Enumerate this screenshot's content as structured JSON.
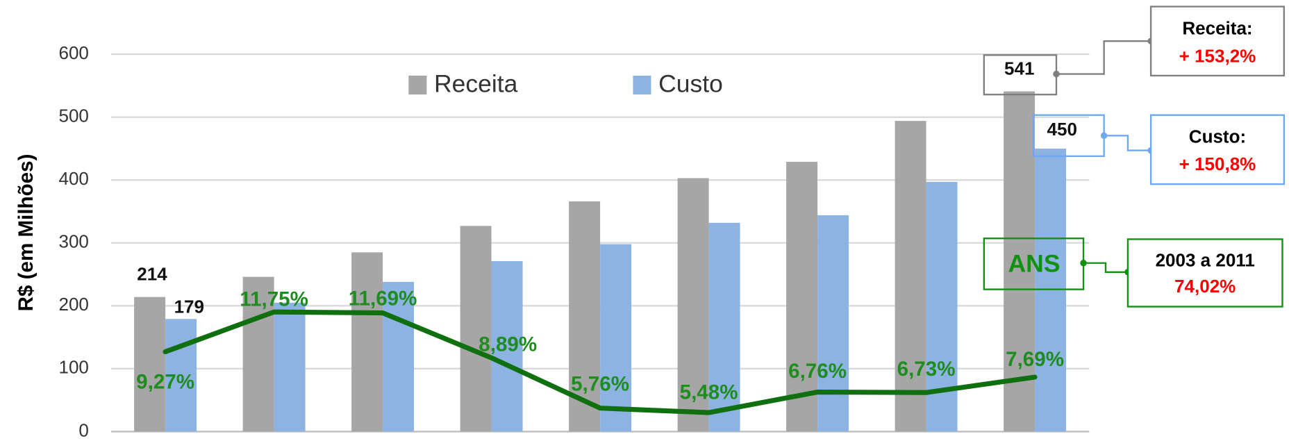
{
  "chart_data": {
    "type": "bar",
    "y_axis_label": "R$ (em Milhões)",
    "categories": [
      null,
      null,
      null,
      null,
      null,
      null,
      null,
      null,
      null
    ],
    "series": [
      {
        "name": "Receita",
        "color": "#a6a6a6",
        "values": [
          214,
          246,
          285,
          327,
          366,
          403,
          429,
          494,
          541
        ],
        "value_labels": [
          "214",
          null,
          null,
          null,
          null,
          null,
          null,
          null,
          "541"
        ]
      },
      {
        "name": "Custo",
        "color": "#8db3e2",
        "values": [
          179,
          205,
          238,
          271,
          298,
          332,
          344,
          397,
          450
        ],
        "value_labels": [
          "179",
          null,
          null,
          null,
          null,
          null,
          null,
          null,
          "450"
        ]
      },
      {
        "type": "line",
        "axis": "y2",
        "color": "#107010",
        "values": [
          9.27,
          11.75,
          11.69,
          8.89,
          5.76,
          5.48,
          6.76,
          6.73,
          7.69
        ],
        "value_labels": [
          "9,27%",
          "11,75%",
          "11,69%",
          "8,89%",
          "5,76%",
          "5,48%",
          "6,76%",
          "6,73%",
          "7,69%"
        ]
      }
    ],
    "ylim": [
      0,
      600
    ],
    "yticks": [
      0,
      100,
      200,
      300,
      400,
      500,
      600
    ],
    "y2lim": [
      4.3,
      27.8
    ],
    "grid": true,
    "legend": "top",
    "annotations": {
      "receita": {
        "title": "Receita:",
        "value": "+ 153,2%"
      },
      "custo": {
        "title": "Custo:",
        "value": "+ 150,8%"
      },
      "ans": {
        "label": "ANS",
        "title": "2003 a 2011",
        "value": "74,02%"
      }
    }
  }
}
